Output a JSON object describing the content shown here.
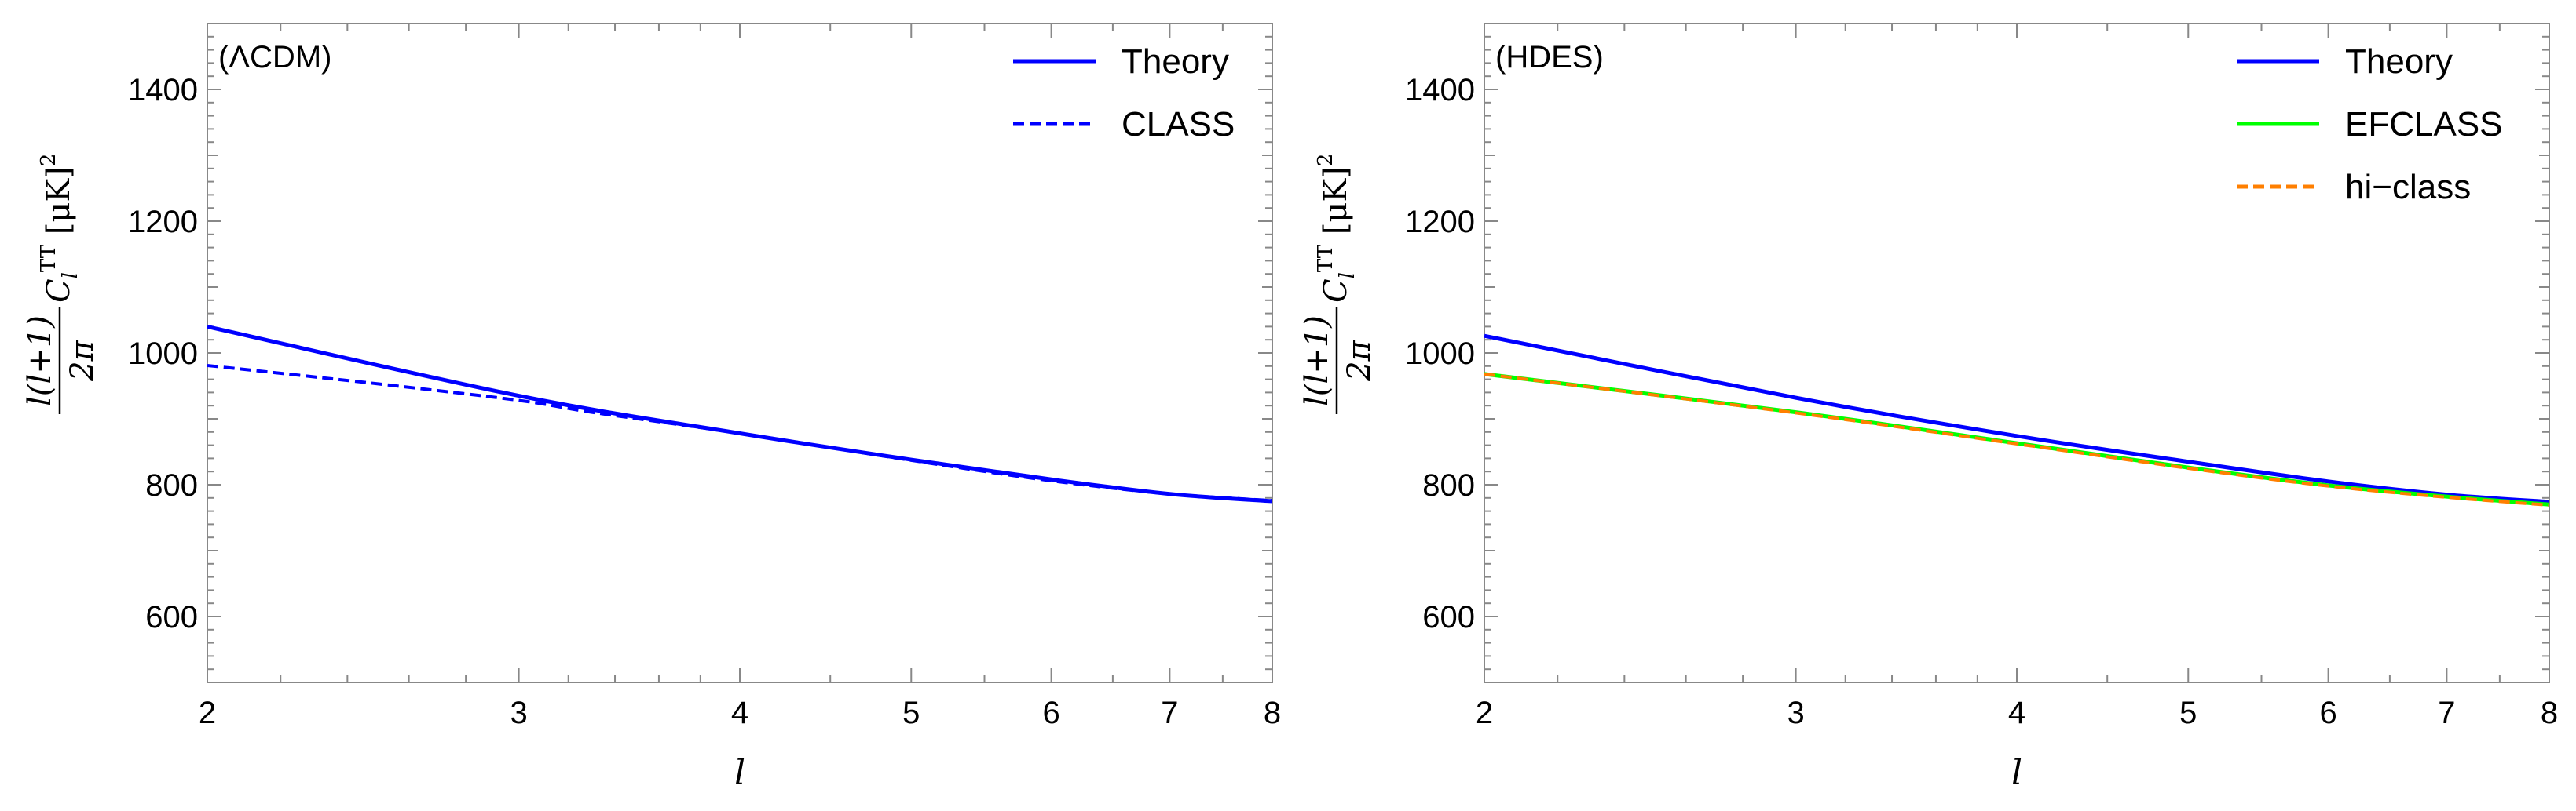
{
  "chart_data": [
    {
      "type": "line",
      "panel_label": "(ΛCDM)",
      "xscale": "log",
      "xlim": [
        2,
        8
      ],
      "ylim": [
        500,
        1500
      ],
      "xticks": [
        "2",
        "3",
        "4",
        "5",
        "6",
        "7",
        "8"
      ],
      "yticks": [
        "600",
        "800",
        "1000",
        "1200",
        "1400"
      ],
      "xlabel": "l",
      "ylabel": "l(l+1) C_l^TT [μK]^2 / 2π",
      "ylabel_parts": {
        "num": "l(l+1)",
        "den": "2π",
        "c": "C",
        "sub": "l",
        "sup": "TT",
        "unit": "[μK]",
        "unit_sup": "2"
      },
      "legend_position": "top-right",
      "series": [
        {
          "name": "Theory",
          "color": "#0000ff",
          "style": "solid",
          "x": [
            2,
            3,
            4,
            5,
            6,
            7,
            8
          ],
          "y": [
            1040,
            935,
            878,
            838,
            808,
            786,
            775
          ]
        },
        {
          "name": "CLASS",
          "color": "#0000ff",
          "style": "dashed",
          "x": [
            2,
            2.5,
            3,
            3.3,
            4,
            5,
            6,
            7,
            8
          ],
          "y": [
            981,
            953,
            928,
            910,
            878,
            837,
            806,
            786,
            776
          ]
        }
      ]
    },
    {
      "type": "line",
      "panel_label": "(HDES)",
      "xscale": "log",
      "xlim": [
        2,
        8
      ],
      "ylim": [
        500,
        1500
      ],
      "xticks": [
        "2",
        "3",
        "4",
        "5",
        "6",
        "7",
        "8"
      ],
      "yticks": [
        "600",
        "800",
        "1000",
        "1200",
        "1400"
      ],
      "xlabel": "l",
      "ylabel": "l(l+1) C_l^TT [μK]^2 / 2π",
      "ylabel_parts": {
        "num": "l(l+1)",
        "den": "2π",
        "c": "C",
        "sub": "l",
        "sup": "TT",
        "unit": "[μK]",
        "unit_sup": "2"
      },
      "legend_position": "top-right",
      "series": [
        {
          "name": "Theory",
          "color": "#0000ff",
          "style": "solid",
          "x": [
            2,
            3,
            4,
            5,
            6,
            7,
            8
          ],
          "y": [
            1026,
            932,
            874,
            835,
            805,
            785,
            774
          ]
        },
        {
          "name": "EFCLASS",
          "color": "#00ff00",
          "style": "solid",
          "x": [
            2,
            3,
            4,
            5,
            6,
            7,
            8
          ],
          "y": [
            968,
            910,
            863,
            826,
            799,
            782,
            770
          ]
        },
        {
          "name": "hi−class",
          "color": "#ff7f00",
          "style": "dashed",
          "x": [
            2,
            3,
            4,
            5,
            6,
            7,
            8
          ],
          "y": [
            968,
            909,
            862,
            825,
            798,
            781,
            769
          ]
        }
      ]
    }
  ]
}
